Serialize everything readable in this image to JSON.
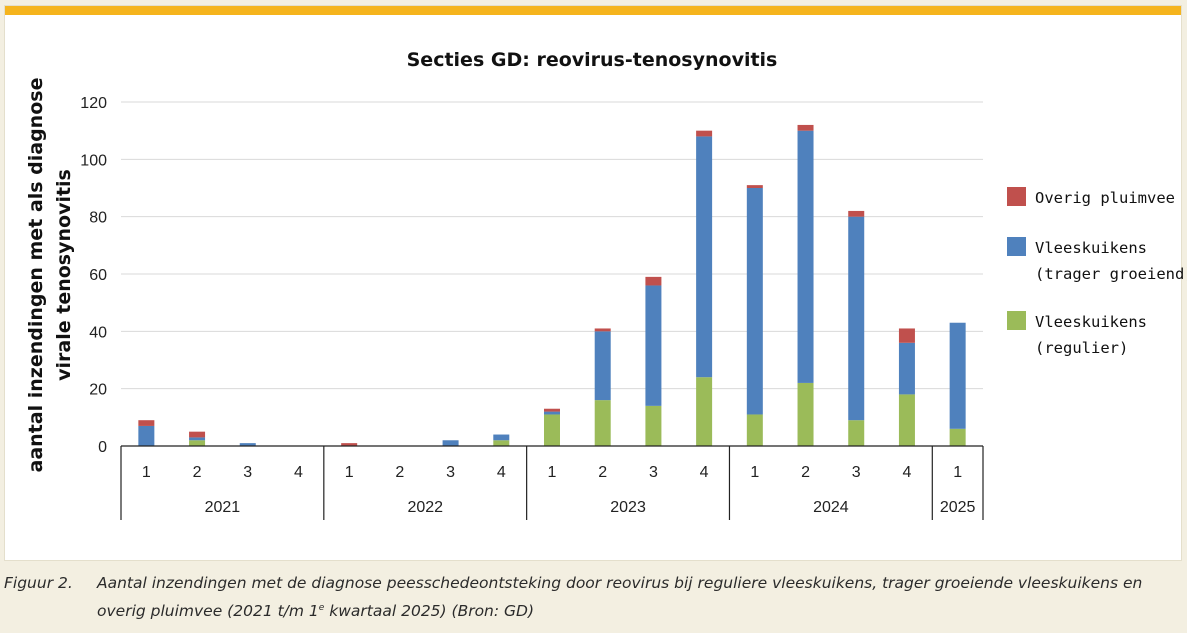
{
  "chart_data": {
    "type": "bar",
    "stacked": true,
    "title": "Secties GD: reovirus-tenosynovitis",
    "ylabel_line1": "aantal inzendingen met als diagnose",
    "ylabel_line2": "virale tenosynovitis",
    "ylim": [
      0,
      120
    ],
    "yticks": [
      0,
      20,
      40,
      60,
      80,
      100,
      120
    ],
    "grid": true,
    "legend_position": "right",
    "categories": [
      "1",
      "2",
      "3",
      "4",
      "1",
      "2",
      "3",
      "4",
      "1",
      "2",
      "3",
      "4",
      "1",
      "2",
      "3",
      "4",
      "1"
    ],
    "groups": [
      {
        "label": "2021",
        "count": 4
      },
      {
        "label": "2022",
        "count": 4
      },
      {
        "label": "2023",
        "count": 4
      },
      {
        "label": "2024",
        "count": 4
      },
      {
        "label": "2025",
        "count": 1
      }
    ],
    "series": [
      {
        "name": "Vleeskuikens (regulier)",
        "color": "#9bbb59",
        "values": [
          0,
          2,
          0,
          0,
          0,
          0,
          0,
          2,
          11,
          16,
          14,
          24,
          11,
          22,
          9,
          18,
          6
        ]
      },
      {
        "name": "Vleeskuikens (trager groeiend)",
        "color": "#4f81bd",
        "values": [
          7,
          1,
          1,
          0,
          0,
          0,
          2,
          2,
          1,
          24,
          42,
          84,
          79,
          88,
          71,
          18,
          37
        ]
      },
      {
        "name": "Overig pluimvee",
        "color": "#c0504d",
        "values": [
          2,
          2,
          0,
          0,
          1,
          0,
          0,
          0,
          1,
          1,
          3,
          2,
          1,
          2,
          2,
          5,
          0
        ]
      }
    ],
    "legend": [
      {
        "lines": [
          "Overig pluimvee"
        ],
        "color": "#c0504d"
      },
      {
        "lines": [
          "Vleeskuikens",
          "(trager groeiend)"
        ],
        "color": "#4f81bd"
      },
      {
        "lines": [
          "Vleeskuikens",
          "(regulier)"
        ],
        "color": "#9bbb59"
      }
    ]
  },
  "caption": {
    "figure_label": "Figuur 2.",
    "text_before_sup": "Aantal inzendingen met de diagnose peesschedeontsteking door reovirus bij reguliere vleeskuikens, trager groeiende vleeskuikens en overig pluimvee (2021 t/m 1",
    "superscript": "e",
    "text_after_sup": " kwartaal 2025) (Bron: GD)"
  },
  "colors": {
    "accent_bar": "#f5b41d",
    "grid": "#d9d9d9",
    "page_background": "#f3efe1"
  }
}
